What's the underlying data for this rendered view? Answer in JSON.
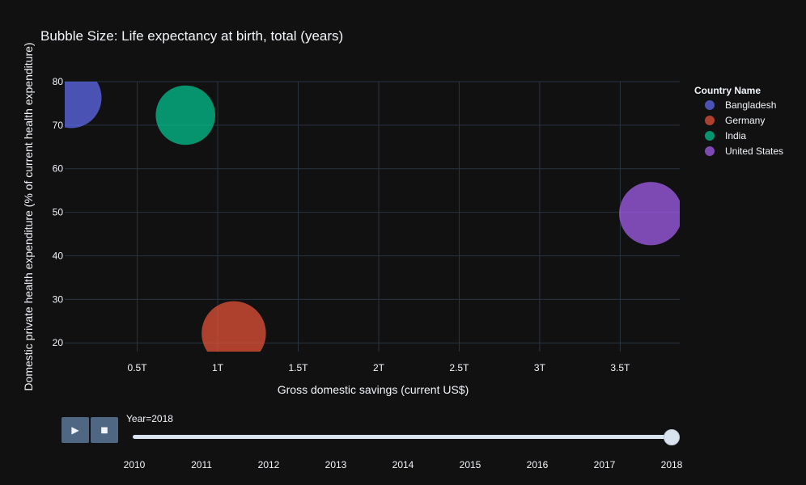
{
  "chart_data": {
    "type": "scatter",
    "title": "Bubble Size: Life expectancy at birth, total (years)",
    "xlabel": "Gross domestic savings (current US$)",
    "ylabel": "Domestic private health expenditure (% of current health expenditure)",
    "xlim": [
      50000000000.0,
      3870000000000.0
    ],
    "ylim": [
      18,
      80
    ],
    "xticks": [
      500000000000.0,
      1000000000000.0,
      1500000000000.0,
      2000000000000.0,
      2500000000000.0,
      3000000000000.0,
      3500000000000.0
    ],
    "xtick_labels": [
      "0.5T",
      "1T",
      "1.5T",
      "2T",
      "2.5T",
      "3T",
      "3.5T"
    ],
    "yticks": [
      20,
      30,
      40,
      50,
      60,
      70,
      80
    ],
    "grid": true,
    "legend": {
      "title": "Country Name",
      "placement": "right"
    },
    "size_variable": "Life expectancy at birth, total (years)",
    "series": [
      {
        "name": "Bangladesh",
        "color": "#636efa",
        "x": 90000000000.0,
        "y": 76.3,
        "size": 72.3
      },
      {
        "name": "Germany",
        "color": "#ef553b",
        "x": 1100000000000.0,
        "y": 22.2,
        "size": 81.0
      },
      {
        "name": "India",
        "color": "#00cc96",
        "x": 800000000000.0,
        "y": 72.3,
        "size": 69.4
      },
      {
        "name": "United States",
        "color": "#ab63fa",
        "x": 3690000000000.0,
        "y": 49.7,
        "size": 78.5
      }
    ]
  },
  "slider": {
    "label": "Year=2018",
    "current": "2018",
    "years": [
      "2010",
      "2011",
      "2012",
      "2013",
      "2014",
      "2015",
      "2016",
      "2017",
      "2018"
    ]
  },
  "controls": {
    "play_icon": "play-icon",
    "stop_icon": "stop-icon",
    "play_symbol": "▶",
    "stop_symbol": "■"
  },
  "colors": {
    "background": "#111111",
    "grid": "#283442",
    "text": "#f2f5fa",
    "button": "#506784",
    "slider": "#d9e3f0"
  }
}
